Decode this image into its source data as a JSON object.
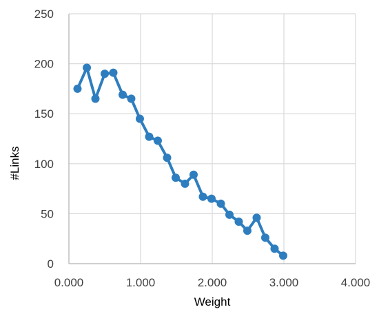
{
  "chart_data": {
    "type": "line",
    "title": "",
    "xlabel": "Weight",
    "ylabel": "#Links",
    "xlim": [
      0,
      4
    ],
    "ylim": [
      0,
      250
    ],
    "x_ticks": [
      0,
      1,
      2,
      3,
      4
    ],
    "x_tick_labels": [
      "0.000",
      "1.000",
      "2.000",
      "3.000",
      "4.000"
    ],
    "y_ticks": [
      0,
      50,
      100,
      150,
      200,
      250
    ],
    "y_tick_labels": [
      "0",
      "50",
      "100",
      "150",
      "200",
      "250"
    ],
    "grid": true,
    "legend": "none",
    "series": [
      {
        "color": "#2e7ebf",
        "marker": "circle",
        "x": [
          0.12,
          0.25,
          0.37,
          0.5,
          0.62,
          0.75,
          0.87,
          0.99,
          1.12,
          1.24,
          1.37,
          1.49,
          1.62,
          1.74,
          1.87,
          1.99,
          2.12,
          2.24,
          2.37,
          2.49,
          2.62,
          2.74,
          2.87,
          2.99
        ],
        "y": [
          175,
          196,
          165,
          190,
          191,
          169,
          165,
          145,
          127,
          123,
          106,
          86,
          80,
          89,
          67,
          65,
          60,
          49,
          42,
          33,
          46,
          26,
          15,
          8
        ]
      }
    ]
  }
}
